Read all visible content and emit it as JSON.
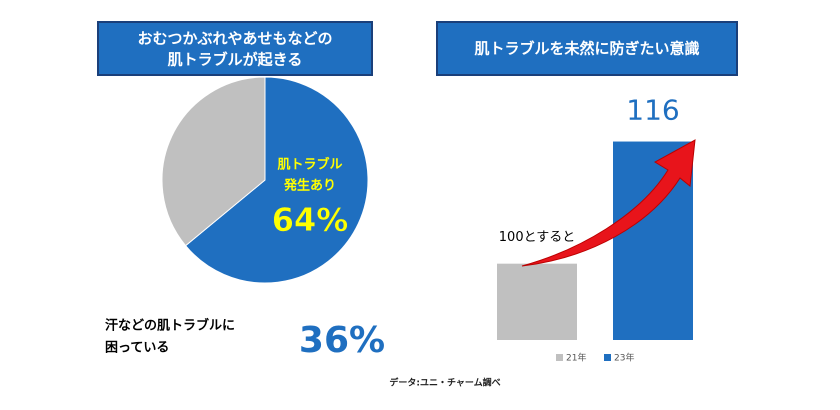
{
  "chart_data": [
    {
      "type": "pie",
      "title": [
        "おむつかぶれやあせもなどの",
        "肌トラブルが起きる"
      ],
      "categories": [
        [
          "肌トラブル",
          "発生あり"
        ],
        [
          "汗などの肌トラブルに",
          "困っている"
        ]
      ],
      "values": [
        64,
        36
      ],
      "value_labels": [
        "64%",
        "36%"
      ],
      "colors": [
        "#1f6fc0",
        "#c0c0c0"
      ]
    },
    {
      "type": "bar",
      "title": "肌トラブルを未然に防ぎたい意識",
      "series": [
        {
          "name": "21年",
          "color": "#c0c0c0",
          "values": [
            100,
            null
          ],
          "value_labels": [
            "100とすると",
            null
          ]
        },
        {
          "name": "23年",
          "color": "#1f6fc0",
          "values": [
            null,
            116
          ],
          "value_labels": [
            null,
            "116"
          ]
        }
      ],
      "ylim": [
        90,
        120
      ]
    }
  ],
  "source": "データ:ユニ・チャーム調べ"
}
